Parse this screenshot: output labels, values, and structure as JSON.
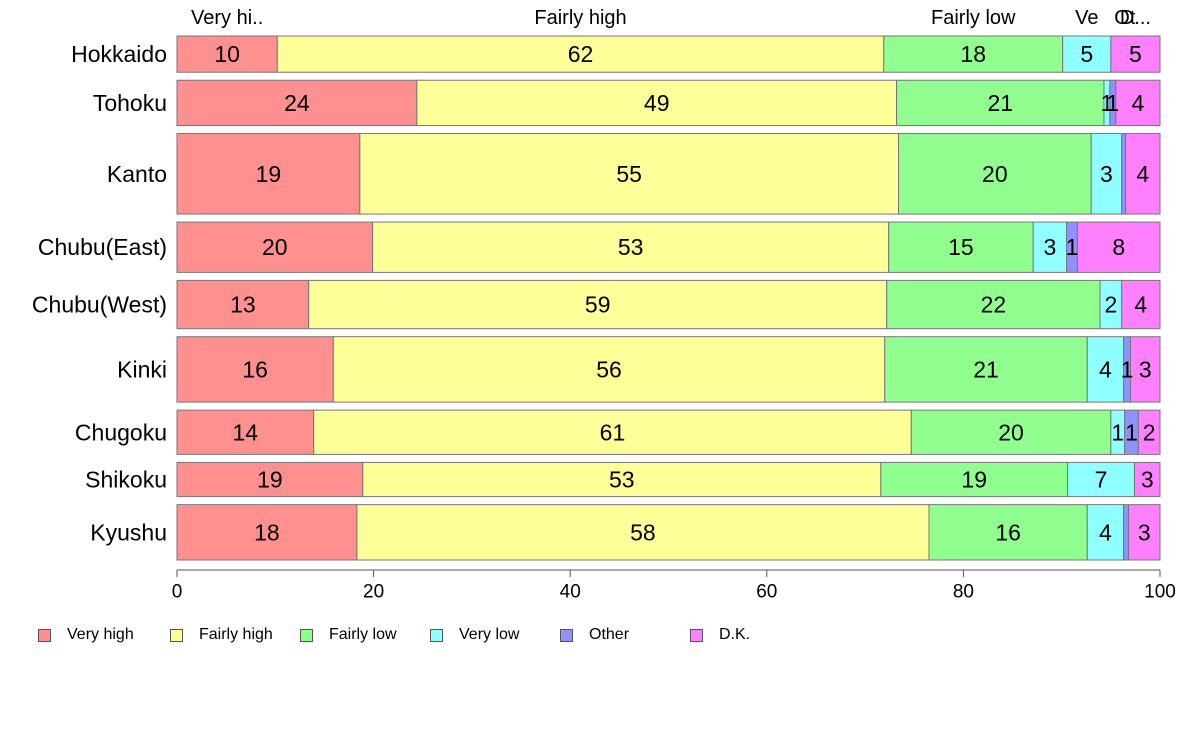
{
  "chart_data": {
    "type": "bar",
    "orientation": "horizontal",
    "stacked": true,
    "percent_scale": true,
    "categories": [
      "Hokkaido",
      "Tohoku",
      "Kanto",
      "Chubu(East)",
      "Chubu(West)",
      "Kinki",
      "Chugoku",
      "Shikoku",
      "Kyushu"
    ],
    "series": [
      {
        "name": "Very high",
        "color": "#FF9090",
        "values": [
          10.2,
          24.4,
          18.6,
          19.9,
          13.4,
          15.9,
          13.9,
          18.9,
          18.3
        ],
        "labels": [
          "10",
          "24",
          "19",
          "20",
          "13",
          "16",
          "14",
          "19",
          "18"
        ]
      },
      {
        "name": "Fairly high",
        "color": "#FFFF99",
        "values": [
          61.7,
          48.8,
          54.8,
          52.5,
          58.8,
          56.1,
          60.8,
          52.7,
          58.2
        ],
        "labels": [
          "62",
          "49",
          "55",
          "53",
          "59",
          "56",
          "61",
          "53",
          "58"
        ]
      },
      {
        "name": "Fairly low",
        "color": "#90FF90",
        "values": [
          18.2,
          21.1,
          19.6,
          14.7,
          21.7,
          20.6,
          20.3,
          19.0,
          16.1
        ],
        "labels": [
          "18",
          "21",
          "20",
          "15",
          "22",
          "21",
          "20",
          "19",
          "16"
        ]
      },
      {
        "name": "Very low",
        "color": "#90FFFF",
        "values": [
          4.9,
          0.6,
          3.1,
          3.4,
          2.2,
          3.7,
          1.4,
          6.8,
          3.7
        ],
        "labels": [
          "5",
          "1",
          "3",
          "3",
          "2",
          "4",
          "1",
          "7",
          "4"
        ]
      },
      {
        "name": "Other",
        "color": "#9090FF",
        "values": [
          0.0,
          0.6,
          0.4,
          1.1,
          0.0,
          0.7,
          1.4,
          0.0,
          0.5
        ],
        "labels": [
          "",
          "1",
          "",
          "1",
          "",
          "1",
          "1",
          "",
          ""
        ]
      },
      {
        "name": "D.K.",
        "color": "#FF80FF",
        "values": [
          5.0,
          4.5,
          3.5,
          8.4,
          3.9,
          3.0,
          2.2,
          2.6,
          3.2
        ],
        "labels": [
          "5",
          "4",
          "4",
          "8",
          "4",
          "3",
          "2",
          "3",
          "3"
        ]
      }
    ],
    "top_labels": [
      "Very hi..",
      "Fairly high",
      "Fairly low",
      "Ve",
      "Ot",
      "D..."
    ],
    "xlim": [
      0,
      100
    ],
    "xticks": [
      0,
      20,
      40,
      60,
      80,
      100
    ],
    "relative_bar_widths": [
      36,
      45,
      80,
      50,
      48,
      65,
      44,
      34,
      55
    ],
    "grid": false,
    "legend_position": "bottom"
  }
}
